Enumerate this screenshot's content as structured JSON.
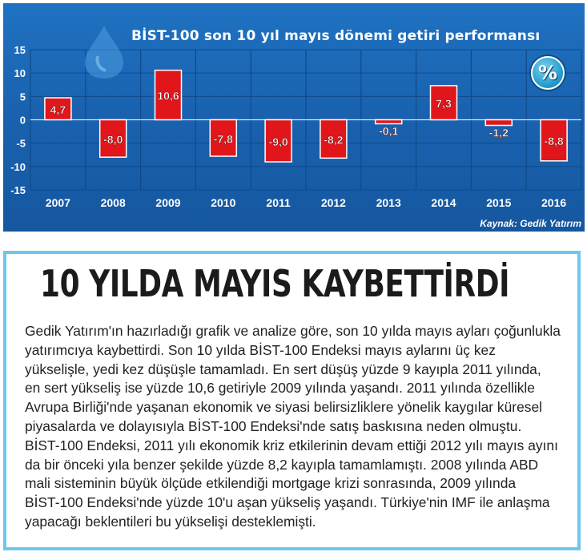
{
  "chart_data": {
    "type": "bar",
    "title": "BİST-100 son 10 yıl mayıs dönemi getiri performansı",
    "categories": [
      "2007",
      "2008",
      "2009",
      "2010",
      "2011",
      "2012",
      "2013",
      "2014",
      "2015",
      "2016"
    ],
    "values": [
      4.7,
      -8.0,
      10.6,
      -7.8,
      -9.0,
      -8.2,
      -0.1,
      7.3,
      -1.2,
      -8.8
    ],
    "value_labels": [
      "4,7",
      "-8,0",
      "10,6",
      "-7,8",
      "-9,0",
      "-8,2",
      "-0,1",
      "7,3",
      "-1,2",
      "-8,8"
    ],
    "y_ticks": [
      "15",
      "10",
      "5",
      "0",
      "-5",
      "-10",
      "-15"
    ],
    "y_tick_values": [
      15,
      10,
      5,
      0,
      -5,
      -10,
      -15
    ],
    "ylim": [
      -15,
      15
    ],
    "grid": true,
    "badge": "%",
    "source": "Kaynak: Gedik Yatırım",
    "colors": {
      "background": "#1a63b0",
      "bar": "#e0161b",
      "bar_border": "#ffffff",
      "grid": "#0f4a8a",
      "text": "#ffffff"
    }
  },
  "article": {
    "headline": "10 YILDA MAYIS KAYBETTİRDİ",
    "lines": [
      "Gedik Yatırım'ın hazırladığı grafik ve analize göre, son 10 yılda mayıs ayları çoğunlukla",
      "yatırımcıya kaybettirdi. Son 10 yılda BİST-100 Endeksi mayıs aylarını üç kez",
      "yükselişle, yedi kez düşüşle tamamladı. En sert düşüş yüzde 9 kayıpla 2011 yılında,",
      "en sert yükseliş ise yüzde 10,6 getiriyle 2009 yılında yaşandı. 2011 yılında özellikle",
      "Avrupa Birliği'nde yaşanan ekonomik ve siyasi belirsizliklere yönelik kaygılar küresel",
      "piyasalarda ve dolayısıyla BİST-100 Endeksi'nde satış baskısına neden olmuştu.",
      "BİST-100 Endeksi, 2011 yılı ekonomik kriz etkilerinin devam ettiği 2012 yılı mayıs ayını",
      "da bir önceki yıla benzer şekilde yüzde 8,2 kayıpla tamamlamıştı. 2008 yılında ABD",
      "mali sisteminin büyük ölçüde etkilendiği mortgage krizi sonrasında, 2009 yılında",
      "BİST-100 Endeksi'nde yüzde 10'u aşan yükseliş yaşandı. Türkiye'nin IMF ile anlaşma",
      "yapacağı beklentileri bu yükselişi desteklemişti."
    ]
  }
}
